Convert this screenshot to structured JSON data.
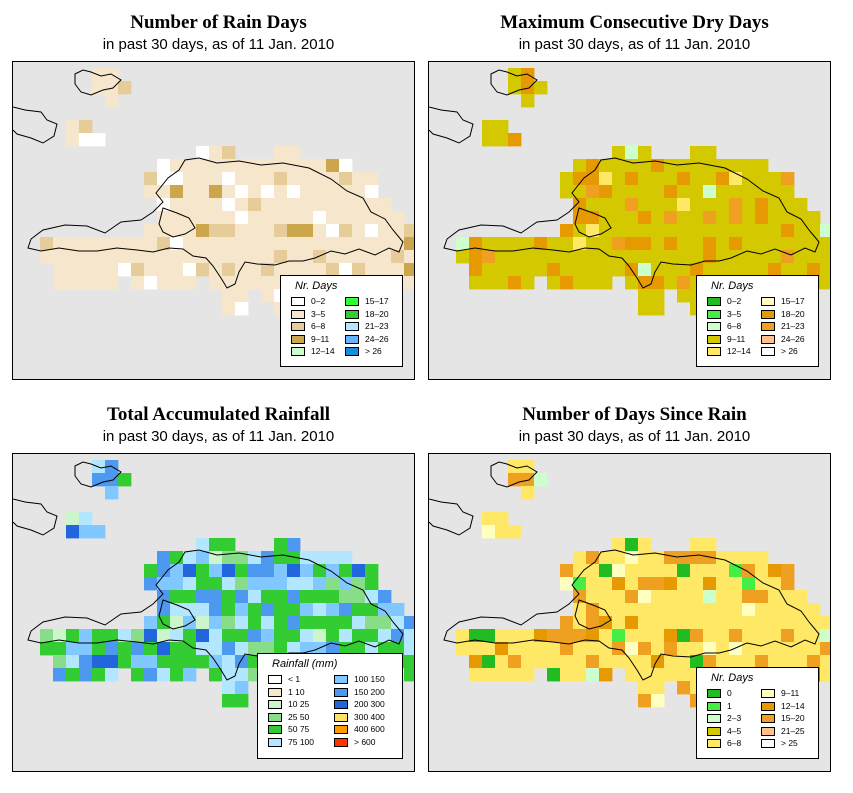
{
  "panels": [
    {
      "id": "rain-days",
      "title": "Number of Rain Days",
      "subtitle": "in past 30 days, as of  11 Jan. 2010",
      "legend_title": "Nr. Days",
      "legend_items": [
        {
          "label": "0–2",
          "color": "#ffffff"
        },
        {
          "label": "3–5",
          "color": "#f5e6cc"
        },
        {
          "label": "6–8",
          "color": "#e6cc99"
        },
        {
          "label": "9–11",
          "color": "#cca64d"
        },
        {
          "label": "12–14",
          "color": "#ccffcc"
        },
        {
          "label": "15–17",
          "color": "#33ff33"
        },
        {
          "label": "18–20",
          "color": "#33cc33"
        },
        {
          "label": "21–23",
          "color": "#b3e6ff"
        },
        {
          "label": "24–26",
          "color": "#66b3ff"
        },
        {
          "label": "> 26",
          "color": "#1a8cd9"
        }
      ]
    },
    {
      "id": "max-dry-days",
      "title": "Maximum Consecutive Dry Days",
      "subtitle": "in past 30 days, as of  11 Jan. 2010",
      "legend_title": "Nr. Days",
      "legend_items": [
        {
          "label": "0–2",
          "color": "#22bb22"
        },
        {
          "label": "3–5",
          "color": "#44ee44"
        },
        {
          "label": "6–8",
          "color": "#ccffcc"
        },
        {
          "label": "9–11",
          "color": "#d4c800"
        },
        {
          "label": "12–14",
          "color": "#ffe866"
        },
        {
          "label": "15–17",
          "color": "#ffffc0"
        },
        {
          "label": "18–20",
          "color": "#e69900"
        },
        {
          "label": "21–23",
          "color": "#f0a020"
        },
        {
          "label": "24–26",
          "color": "#ffc090"
        },
        {
          "label": "> 26",
          "color": "#ffffff"
        }
      ]
    },
    {
      "id": "total-rainfall",
      "title": "Total Accumulated Rainfall",
      "subtitle": "in past 30 days, as of  11 Jan. 2010",
      "legend_title": "Rainfall (mm)",
      "legend_items": [
        {
          "label": "< 1",
          "color": "#ffffff"
        },
        {
          "label": "1    10",
          "color": "#f5e6cc"
        },
        {
          "label": "10    25",
          "color": "#ccf5cc"
        },
        {
          "label": "25    50",
          "color": "#88dd88"
        },
        {
          "label": "50    75",
          "color": "#33cc33"
        },
        {
          "label": "75  100",
          "color": "#b3e6ff"
        },
        {
          "label": "100  150",
          "color": "#80c8ff"
        },
        {
          "label": "150  200",
          "color": "#4d99f0"
        },
        {
          "label": "200  300",
          "color": "#2266dd"
        },
        {
          "label": "300  400",
          "color": "#ffe066"
        },
        {
          "label": "400  600",
          "color": "#ff9900"
        },
        {
          "label": "> 600",
          "color": "#ff3300"
        }
      ]
    },
    {
      "id": "days-since-rain",
      "title": "Number of Days Since Rain",
      "subtitle": "in past 30 days, as of  11 Jan. 2010",
      "legend_title": "Nr. Days",
      "legend_items": [
        {
          "label": "0",
          "color": "#22bb22"
        },
        {
          "label": "1",
          "color": "#44ee44"
        },
        {
          "label": "2–3",
          "color": "#ccffcc"
        },
        {
          "label": "4–5",
          "color": "#d4c800"
        },
        {
          "label": "6–8",
          "color": "#ffe866"
        },
        {
          "label": "9–11",
          "color": "#ffffc0"
        },
        {
          "label": "12–14",
          "color": "#e69900"
        },
        {
          "label": "15–20",
          "color": "#f0a020"
        },
        {
          "label": "21–25",
          "color": "#ffc090"
        },
        {
          "label": "> 25",
          "color": "#ffffff"
        }
      ]
    }
  ]
}
